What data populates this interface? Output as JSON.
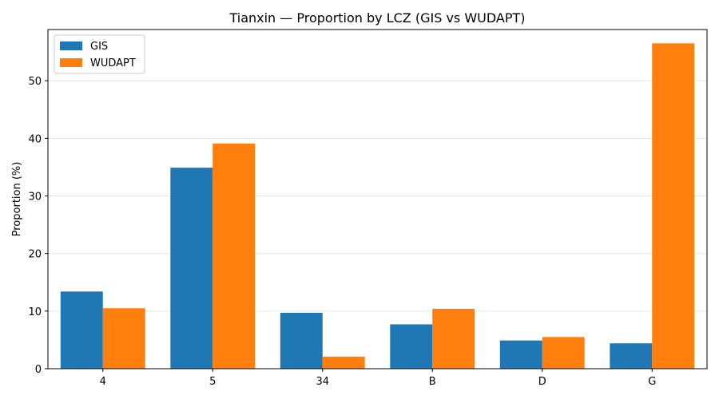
{
  "chart_data": {
    "type": "bar",
    "title": "Tianxin — Proportion by LCZ (GIS vs WUDAPT)",
    "xlabel": "",
    "ylabel": "Proportion (%)",
    "categories": [
      "4",
      "5",
      "34",
      "B",
      "D",
      "G"
    ],
    "series": [
      {
        "name": "GIS",
        "color": "#1f77b4",
        "values": [
          13.4,
          34.9,
          9.7,
          7.7,
          4.9,
          4.4
        ]
      },
      {
        "name": "WUDAPT",
        "color": "#ff7f0e",
        "values": [
          10.5,
          39.1,
          2.1,
          10.4,
          5.5,
          56.5
        ]
      }
    ],
    "ylim": [
      0,
      58.9
    ],
    "yticks": [
      0,
      10,
      20,
      30,
      40,
      50
    ],
    "grid": "y",
    "legend": "top-left"
  }
}
